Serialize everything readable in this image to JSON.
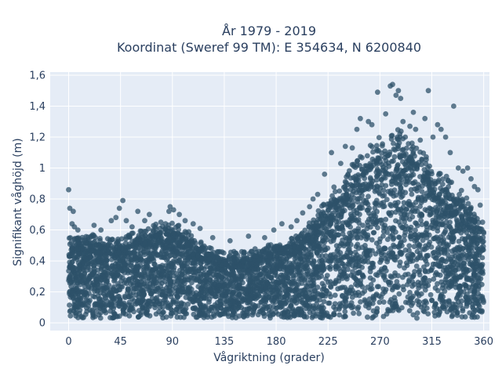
{
  "chart_data": {
    "type": "scatter",
    "title_line1": "År 1979 - 2019",
    "title_line2": "Koordinat (Sweref 99 TM): E 354634, N 6200840",
    "xlabel": "Vågriktning (grader)",
    "ylabel": "Signifikant våghöjd (m)",
    "xlim": [
      -16,
      365
    ],
    "ylim": [
      -0.05,
      1.62
    ],
    "x_ticks": [
      0,
      45,
      90,
      135,
      180,
      225,
      270,
      315,
      360
    ],
    "x_tick_labels": [
      "0",
      "45",
      "90",
      "135",
      "180",
      "225",
      "270",
      "315",
      "360"
    ],
    "y_ticks": [
      0,
      0.2,
      0.4,
      0.6,
      0.8,
      1.0,
      1.2,
      1.4,
      1.6
    ],
    "y_tick_labels": [
      "0",
      "0,2",
      "0,4",
      "0,6",
      "0,8",
      "1",
      "1,2",
      "1,4",
      "1,6"
    ],
    "grid": true,
    "marker_color": "#2e5169",
    "plot_background": "#e5ecf6",
    "series": [
      {
        "envelope_x": [
          0,
          20,
          45,
          60,
          75,
          90,
          100,
          120,
          135,
          150,
          165,
          180,
          200,
          215,
          225,
          240,
          255,
          270,
          285,
          300,
          315,
          330,
          345,
          360
        ],
        "envelope_y": [
          0.5,
          0.52,
          0.5,
          0.55,
          0.58,
          0.6,
          0.56,
          0.45,
          0.42,
          0.42,
          0.44,
          0.47,
          0.52,
          0.65,
          0.75,
          0.9,
          1.0,
          1.1,
          1.15,
          1.05,
          0.95,
          0.85,
          0.75,
          0.55
        ],
        "outliers": [
          [
            0,
            0.86
          ],
          [
            1,
            0.74
          ],
          [
            4,
            0.72
          ],
          [
            3,
            0.64
          ],
          [
            5,
            0.62
          ],
          [
            8,
            0.6
          ],
          [
            22,
            0.63
          ],
          [
            28,
            0.6
          ],
          [
            37,
            0.66
          ],
          [
            41,
            0.68
          ],
          [
            44,
            0.74
          ],
          [
            47,
            0.79
          ],
          [
            50,
            0.66
          ],
          [
            55,
            0.62
          ],
          [
            60,
            0.72
          ],
          [
            66,
            0.66
          ],
          [
            70,
            0.7
          ],
          [
            80,
            0.65
          ],
          [
            84,
            0.64
          ],
          [
            87,
            0.72
          ],
          [
            88,
            0.75
          ],
          [
            91,
            0.73
          ],
          [
            96,
            0.7
          ],
          [
            101,
            0.66
          ],
          [
            108,
            0.64
          ],
          [
            114,
            0.61
          ],
          [
            125,
            0.55
          ],
          [
            140,
            0.53
          ],
          [
            156,
            0.56
          ],
          [
            170,
            0.55
          ],
          [
            178,
            0.6
          ],
          [
            185,
            0.64
          ],
          [
            193,
            0.62
          ],
          [
            198,
            0.66
          ],
          [
            203,
            0.71
          ],
          [
            209,
            0.75
          ],
          [
            212,
            0.8
          ],
          [
            216,
            0.83
          ],
          [
            222,
            0.96
          ],
          [
            228,
            1.1
          ],
          [
            236,
            1.03
          ],
          [
            240,
            1.14
          ],
          [
            246,
            1.13
          ],
          [
            250,
            1.25
          ],
          [
            253,
            1.32
          ],
          [
            260,
            1.3
          ],
          [
            263,
            1.28
          ],
          [
            268,
            1.49
          ],
          [
            275,
            1.35
          ],
          [
            279,
            1.53
          ],
          [
            281,
            1.54
          ],
          [
            284,
            1.47
          ],
          [
            286,
            1.5
          ],
          [
            288,
            1.45
          ],
          [
            290,
            1.3
          ],
          [
            292,
            1.2
          ],
          [
            296,
            1.27
          ],
          [
            299,
            1.36
          ],
          [
            301,
            1.25
          ],
          [
            305,
            1.18
          ],
          [
            309,
            1.32
          ],
          [
            312,
            1.5
          ],
          [
            316,
            1.2
          ],
          [
            320,
            1.28
          ],
          [
            323,
            1.25
          ],
          [
            327,
            1.2
          ],
          [
            331,
            1.1
          ],
          [
            334,
            1.4
          ],
          [
            338,
            1.0
          ],
          [
            342,
            0.98
          ],
          [
            346,
            1.0
          ],
          [
            349,
            0.93
          ],
          [
            352,
            0.88
          ],
          [
            355,
            0.86
          ],
          [
            357,
            0.76
          ],
          [
            359,
            0.65
          ],
          [
            360,
            0.58
          ]
        ]
      }
    ]
  }
}
